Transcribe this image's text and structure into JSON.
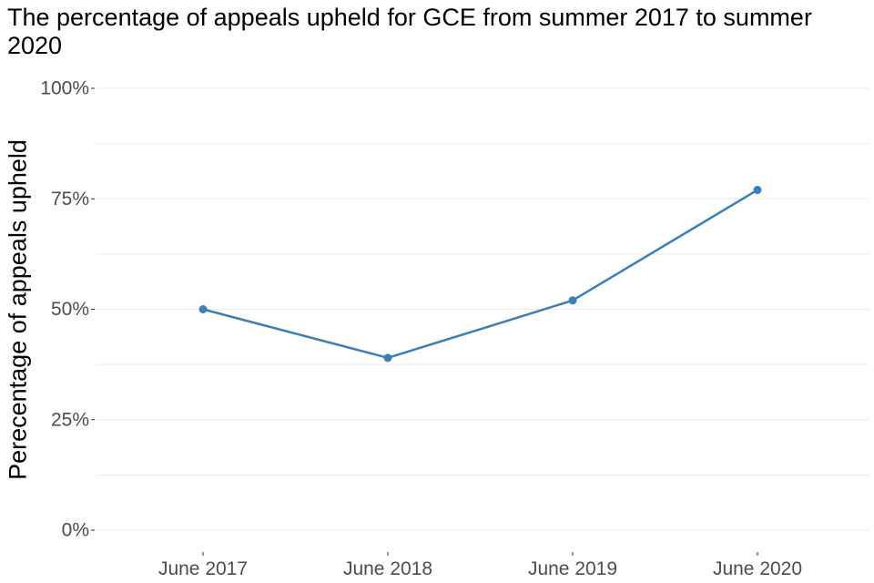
{
  "chart_data": {
    "type": "line",
    "title": "The percentage of appeals upheld for GCE from summer 2017 to summer 2020",
    "xlabel": "",
    "ylabel": "Perecentage of appeals upheld",
    "categories": [
      "June 2017",
      "June 2018",
      "June 2019",
      "June 2020"
    ],
    "series": [
      {
        "values": [
          50,
          39,
          52,
          77
        ],
        "color": "#3a7fb7"
      }
    ],
    "ylim": [
      0,
      100
    ],
    "y_ticks": [
      {
        "value": 0,
        "label": "0%"
      },
      {
        "value": 25,
        "label": "25%"
      },
      {
        "value": 50,
        "label": "50%"
      },
      {
        "value": 75,
        "label": "75%"
      },
      {
        "value": 100,
        "label": "100%"
      }
    ],
    "y_minor_ticks": [
      12.5,
      37.5,
      62.5,
      87.5
    ],
    "grid": true,
    "legend": "none",
    "colors": {
      "line": "#3a7fb7",
      "grid": "#ebebeb",
      "tick_label": "#4d4d4d",
      "text": "#000000"
    }
  }
}
